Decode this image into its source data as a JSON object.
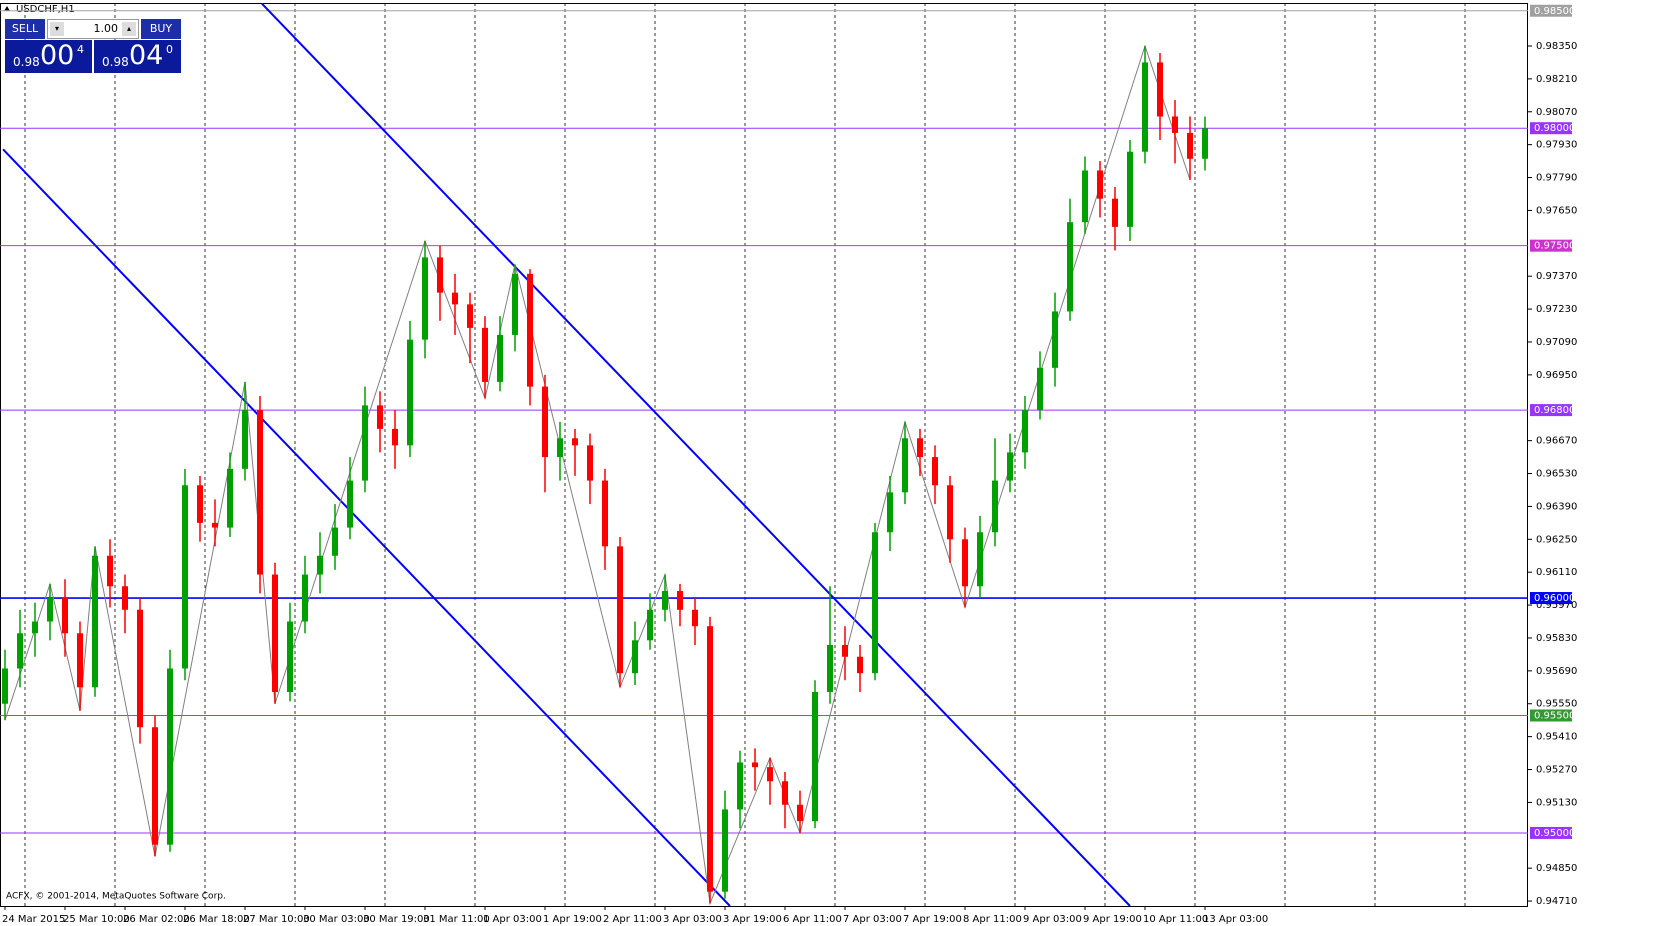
{
  "chart_data": {
    "type": "candlestick",
    "title": "USDCHF,H1",
    "footer": "ACFX, © 2001-2014, MetaQuotes Software Corp.",
    "up_color": "#00a000",
    "down_color": "#ff0000",
    "categories": [
      "24 Mar 2015",
      null,
      null,
      null,
      "25 Mar 10:00",
      null,
      null,
      null,
      "26 Mar 02:00",
      null,
      null,
      null,
      "26 Mar 18:00",
      null,
      null,
      null,
      "27 Mar 10:00",
      null,
      null,
      null,
      "30 Mar 03:00",
      null,
      null,
      null,
      "30 Mar 19:00",
      null,
      null,
      null,
      "31 Mar 11:00",
      null,
      null,
      null,
      "1 Apr 03:00",
      null,
      null,
      null,
      "1 Apr 19:00",
      null,
      null,
      null,
      "2 Apr 11:00",
      null,
      null,
      null,
      "3 Apr 03:00",
      null,
      null,
      null,
      "3 Apr 19:00",
      null,
      null,
      null,
      "6 Apr 11:00",
      null,
      null,
      null,
      "7 Apr 03:00",
      null,
      null,
      null,
      "7 Apr 19:00",
      null,
      null,
      null,
      "8 Apr 11:00",
      null,
      null,
      null,
      "9 Apr 03:00",
      null,
      null,
      null,
      "9 Apr 19:00",
      null,
      null,
      null,
      "10 Apr 11:00",
      null,
      null,
      null,
      "13 Apr 03:00"
    ],
    "open": [
      0.9555,
      0.957,
      0.9585,
      0.959,
      0.96,
      0.9585,
      0.9562,
      0.9618,
      0.9605,
      0.9595,
      0.9545,
      0.9495,
      0.957,
      0.9648,
      0.9632,
      0.963,
      0.9655,
      0.968,
      0.961,
      0.956,
      0.959,
      0.961,
      0.9618,
      0.963,
      0.965,
      0.9682,
      0.9672,
      0.9665,
      0.971,
      0.9745,
      0.973,
      0.9725,
      0.9715,
      0.9692,
      0.9712,
      0.9738,
      0.969,
      0.966,
      0.9668,
      0.9665,
      0.965,
      0.9622,
      0.9568,
      0.9582,
      0.9595,
      0.9603,
      0.9595,
      0.9588,
      0.9475,
      0.951,
      0.953,
      0.9528,
      0.9522,
      0.9512,
      0.9505,
      0.956,
      0.958,
      0.9575,
      0.9568,
      0.9628,
      0.9645,
      0.9668,
      0.966,
      0.9648,
      0.9625,
      0.9605,
      0.9628,
      0.965,
      0.9662,
      0.968,
      0.9698,
      0.9722,
      0.976,
      0.9782,
      0.977,
      0.9758,
      0.979,
      0.9828,
      0.9805,
      0.9798,
      0.9787
    ],
    "high": [
      0.9578,
      0.9595,
      0.9598,
      0.9606,
      0.9608,
      0.959,
      0.9622,
      0.9625,
      0.961,
      0.96,
      0.955,
      0.9578,
      0.9655,
      0.9652,
      0.9642,
      0.9662,
      0.9692,
      0.9686,
      0.9615,
      0.9598,
      0.9618,
      0.9628,
      0.964,
      0.966,
      0.969,
      0.9688,
      0.968,
      0.9718,
      0.9752,
      0.975,
      0.9738,
      0.973,
      0.972,
      0.972,
      0.9742,
      0.974,
      0.9695,
      0.9675,
      0.9672,
      0.967,
      0.9655,
      0.9626,
      0.959,
      0.9602,
      0.961,
      0.9606,
      0.96,
      0.9592,
      0.9518,
      0.9535,
      0.9536,
      0.9532,
      0.9526,
      0.9518,
      0.9565,
      0.9605,
      0.9588,
      0.958,
      0.9632,
      0.9652,
      0.9675,
      0.9672,
      0.9665,
      0.9652,
      0.963,
      0.9635,
      0.9668,
      0.967,
      0.9686,
      0.9705,
      0.973,
      0.977,
      0.9788,
      0.9786,
      0.9775,
      0.9795,
      0.9835,
      0.9832,
      0.9812,
      0.9805,
      0.9805
    ],
    "low": [
      0.9548,
      0.9562,
      0.9575,
      0.9582,
      0.9575,
      0.9552,
      0.9558,
      0.9596,
      0.9585,
      0.9538,
      0.949,
      0.9492,
      0.9565,
      0.9624,
      0.9622,
      0.9626,
      0.965,
      0.9602,
      0.9555,
      0.9556,
      0.9585,
      0.9602,
      0.9612,
      0.9625,
      0.9645,
      0.9662,
      0.9655,
      0.966,
      0.9702,
      0.9718,
      0.9712,
      0.97,
      0.9685,
      0.9688,
      0.9705,
      0.9682,
      0.9645,
      0.965,
      0.9652,
      0.964,
      0.9612,
      0.9562,
      0.9563,
      0.9578,
      0.959,
      0.9588,
      0.958,
      0.947,
      0.9472,
      0.9502,
      0.9518,
      0.9512,
      0.9502,
      0.95,
      0.9502,
      0.9555,
      0.9565,
      0.956,
      0.9565,
      0.962,
      0.964,
      0.9652,
      0.964,
      0.9615,
      0.9596,
      0.96,
      0.9622,
      0.9645,
      0.9655,
      0.9676,
      0.969,
      0.9718,
      0.9755,
      0.9762,
      0.9748,
      0.9752,
      0.9785,
      0.9795,
      0.9785,
      0.9778,
      0.9782
    ],
    "close": [
      0.957,
      0.9585,
      0.959,
      0.96,
      0.9585,
      0.9562,
      0.9618,
      0.9605,
      0.9595,
      0.9545,
      0.9495,
      0.957,
      0.9648,
      0.9632,
      0.963,
      0.9655,
      0.968,
      0.961,
      0.956,
      0.959,
      0.961,
      0.9618,
      0.963,
      0.965,
      0.9682,
      0.9672,
      0.9665,
      0.971,
      0.9745,
      0.973,
      0.9725,
      0.9715,
      0.9692,
      0.9712,
      0.9738,
      0.969,
      0.966,
      0.9668,
      0.9665,
      0.965,
      0.9622,
      0.9568,
      0.9582,
      0.9595,
      0.9603,
      0.9595,
      0.9588,
      0.9475,
      0.951,
      0.953,
      0.9528,
      0.9522,
      0.9512,
      0.9505,
      0.956,
      0.958,
      0.9575,
      0.9568,
      0.9628,
      0.9645,
      0.9668,
      0.966,
      0.9648,
      0.9625,
      0.9605,
      0.9628,
      0.965,
      0.9662,
      0.968,
      0.9698,
      0.9722,
      0.976,
      0.9782,
      0.977,
      0.9758,
      0.979,
      0.9828,
      0.9805,
      0.9798,
      0.9787,
      0.98
    ],
    "ylim": [
      0.94689,
      0.98533
    ],
    "yticks": [
      {
        "value": 0.9835,
        "label": "0.98350"
      },
      {
        "value": 0.9821,
        "label": "0.98210"
      },
      {
        "value": 0.9807,
        "label": "0.98070"
      },
      {
        "value": 0.9793,
        "label": "0.97930"
      },
      {
        "value": 0.9779,
        "label": "0.97790"
      },
      {
        "value": 0.9765,
        "label": "0.97650"
      },
      {
        "value": 0.9737,
        "label": "0.97370"
      },
      {
        "value": 0.9723,
        "label": "0.97230"
      },
      {
        "value": 0.9709,
        "label": "0.97090"
      },
      {
        "value": 0.9695,
        "label": "0.96950"
      },
      {
        "value": 0.9667,
        "label": "0.96670"
      },
      {
        "value": 0.9653,
        "label": "0.96530"
      },
      {
        "value": 0.9639,
        "label": "0.96390"
      },
      {
        "value": 0.9625,
        "label": "0.96250"
      },
      {
        "value": 0.9611,
        "label": "0.96110"
      },
      {
        "value": 0.9597,
        "label": "0.95970"
      },
      {
        "value": 0.9583,
        "label": "0.95830"
      },
      {
        "value": 0.9569,
        "label": "0.95690"
      },
      {
        "value": 0.9555,
        "label": "0.95550"
      },
      {
        "value": 0.9541,
        "label": "0.95410"
      },
      {
        "value": 0.9527,
        "label": "0.95270"
      },
      {
        "value": 0.9513,
        "label": "0.95130"
      },
      {
        "value": 0.9485,
        "label": "0.94850"
      },
      {
        "value": 0.9471,
        "label": "0.94710"
      }
    ],
    "levels": [
      {
        "value": 0.985,
        "label": "0.98500",
        "color": "#a0a0a0"
      },
      {
        "value": 0.98,
        "label": "0.98000",
        "color": "#9933ff"
      },
      {
        "value": 0.975,
        "label": "0.97500",
        "color": "#cc33cc"
      },
      {
        "value": 0.968,
        "label": "0.96800",
        "color": "#9933ff"
      },
      {
        "value": 0.96,
        "label": "0.96000",
        "color": "#0000ff"
      },
      {
        "value": 0.955,
        "label": "0.95500",
        "color": "#339933"
      },
      {
        "value": 0.95,
        "label": "0.95000",
        "color": "#9933ff"
      }
    ],
    "trendlines": [
      {
        "x": [
          17.13,
          75
        ],
        "y": [
          0.9853,
          0.94689
        ],
        "color": "#0000ff"
      },
      {
        "x": [
          -0.13,
          48.33
        ],
        "y": [
          0.9791,
          0.94689
        ],
        "color": "#0000ff"
      }
    ],
    "zigzag": {
      "color": "#808080",
      "x": [
        0,
        3,
        5,
        6,
        10,
        16,
        18,
        28,
        32,
        34,
        41,
        44,
        47,
        51,
        53,
        60,
        64,
        76,
        79
      ],
      "y": [
        0.9548,
        0.9606,
        0.9552,
        0.9622,
        0.949,
        0.9692,
        0.9555,
        0.9752,
        0.9685,
        0.9742,
        0.9562,
        0.961,
        0.947,
        0.9532,
        0.95,
        0.9675,
        0.9596,
        0.9835,
        0.9778
      ]
    }
  },
  "trade_panel": {
    "sell": "SELL",
    "buy": "BUY",
    "lots": "1.00",
    "bid_big": "0.98",
    "bid_pips": "00",
    "bid_frac": "4",
    "ask_big": "0.98",
    "ask_pips": "04",
    "ask_frac": "0"
  }
}
